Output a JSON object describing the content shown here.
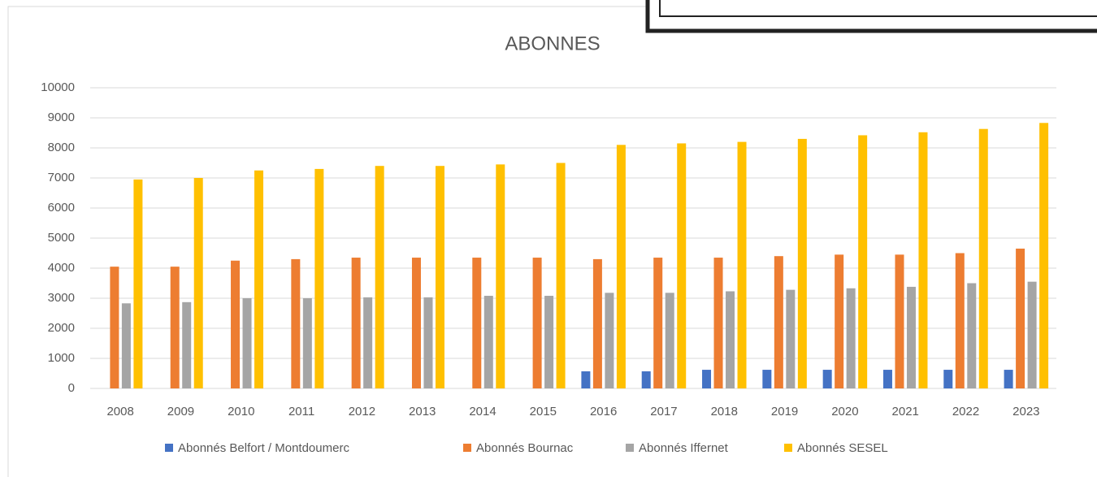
{
  "chart_data": {
    "type": "bar",
    "title": "ABONNES",
    "categories": [
      "2008",
      "2009",
      "2010",
      "2011",
      "2012",
      "2013",
      "2014",
      "2015",
      "2016",
      "2017",
      "2018",
      "2019",
      "2020",
      "2021",
      "2022",
      "2023"
    ],
    "series": [
      {
        "name": "Abonnés Belfort / Montdoumerc",
        "color": "#4472c4",
        "values": [
          null,
          null,
          null,
          null,
          null,
          null,
          null,
          null,
          570,
          570,
          620,
          620,
          620,
          620,
          620,
          620
        ]
      },
      {
        "name": "Abonnés Bournac",
        "color": "#ed7d31",
        "values": [
          4050,
          4050,
          4250,
          4300,
          4350,
          4350,
          4350,
          4350,
          4300,
          4350,
          4350,
          4400,
          4450,
          4450,
          4500,
          4650
        ]
      },
      {
        "name": "Abonnés Iffernet",
        "color": "#a5a5a5",
        "values": [
          2830,
          2870,
          3000,
          3000,
          3030,
          3030,
          3080,
          3080,
          3180,
          3180,
          3230,
          3280,
          3330,
          3380,
          3500,
          3550
        ]
      },
      {
        "name": "Abonnés SESEL",
        "color": "#ffc000",
        "values": [
          6950,
          7000,
          7250,
          7300,
          7400,
          7400,
          7450,
          7500,
          8100,
          8150,
          8200,
          8300,
          8420,
          8520,
          8630,
          8830
        ]
      }
    ],
    "ylim": [
      0,
      10000
    ],
    "yticks": [
      0,
      1000,
      2000,
      3000,
      4000,
      5000,
      6000,
      7000,
      8000,
      9000,
      10000
    ],
    "grid": true,
    "legend": "bottom"
  }
}
